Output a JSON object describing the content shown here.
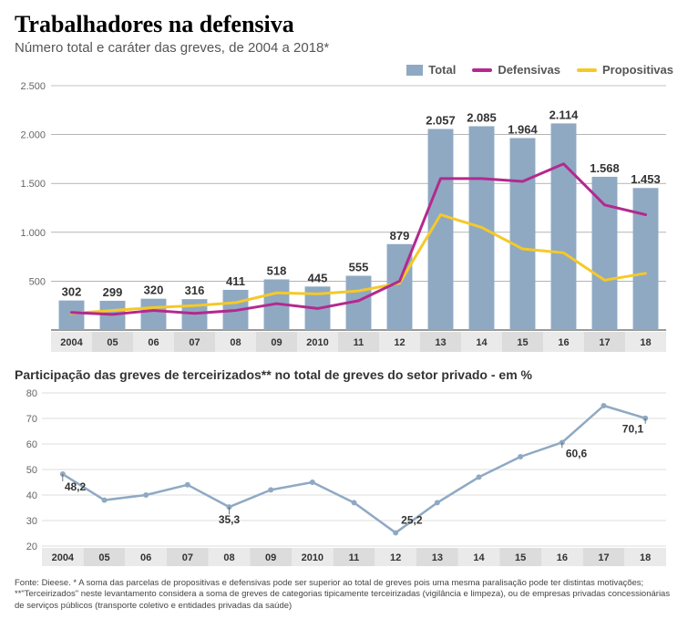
{
  "header": {
    "title": "Trabalhadores na defensiva",
    "subtitle": "Número total e caráter das greves, de 2004 a 2018*"
  },
  "legend": {
    "total": "Total",
    "defensivas": "Defensivas",
    "propositivas": "Propositivas"
  },
  "chart1": {
    "type": "bar+line",
    "years": [
      "2004",
      "05",
      "06",
      "07",
      "08",
      "09",
      "2010",
      "11",
      "12",
      "13",
      "14",
      "15",
      "16",
      "17",
      "18"
    ],
    "total_values": [
      302,
      299,
      320,
      316,
      411,
      518,
      445,
      555,
      879,
      2057,
      2085,
      1964,
      2114,
      1568,
      1453
    ],
    "defensivas": [
      180,
      160,
      200,
      170,
      200,
      270,
      220,
      300,
      500,
      1550,
      1550,
      1520,
      1700,
      1280,
      1180
    ],
    "propositivas": [
      170,
      200,
      230,
      250,
      280,
      380,
      370,
      400,
      480,
      1180,
      1050,
      830,
      790,
      510,
      580
    ],
    "ylim": [
      0,
      2500
    ],
    "ytick_step": 500,
    "ylabels": [
      "2.500",
      "2.000",
      "1.500",
      "1.000",
      "500"
    ],
    "bar_color": "#8fa9c3",
    "defensivas_color": "#b4298e",
    "propositivas_color": "#f5c927",
    "grid_color": "#888888",
    "axis_text_color": "#666666",
    "value_label_color": "#333333",
    "background": "#ffffff",
    "bar_width_ratio": 0.62,
    "line_width": 3,
    "label_fontsize": 13,
    "axis_fontsize": 11
  },
  "chart2_title": "Participação das greves de terceirizados** no total de greves do setor privado - em %",
  "chart2": {
    "type": "line",
    "years": [
      "2004",
      "05",
      "06",
      "07",
      "08",
      "09",
      "2010",
      "11",
      "12",
      "13",
      "14",
      "15",
      "16",
      "17",
      "18"
    ],
    "values": [
      48.2,
      38,
      40,
      44,
      35.3,
      42,
      45,
      37,
      25.2,
      37,
      47,
      55,
      60.6,
      75,
      70.1
    ],
    "label_points": {
      "0": "48,2",
      "4": "35,3",
      "8": "25,2",
      "12": "60,6",
      "14": "70,1"
    },
    "ylim": [
      20,
      80
    ],
    "ytick_step": 10,
    "line_color": "#8fa9c3",
    "grid_color": "#bbbbbb",
    "axis_text_color": "#666666",
    "value_label_color": "#333333",
    "line_width": 2.5,
    "label_fontsize": 12,
    "axis_fontsize": 11
  },
  "footnote": "Fonte: Dieese. * A soma das parcelas de propositivas e defensivas pode ser superior ao total de greves pois uma mesma paralisação pode ter distintas motivações; **\"Terceirizados\" neste levantamento considera a soma de greves de categorias tipicamente terceirizadas (vigilância e limpeza), ou de empresas privadas concessionárias de serviços públicos (transporte coletivo e entidades privadas da saúde)"
}
